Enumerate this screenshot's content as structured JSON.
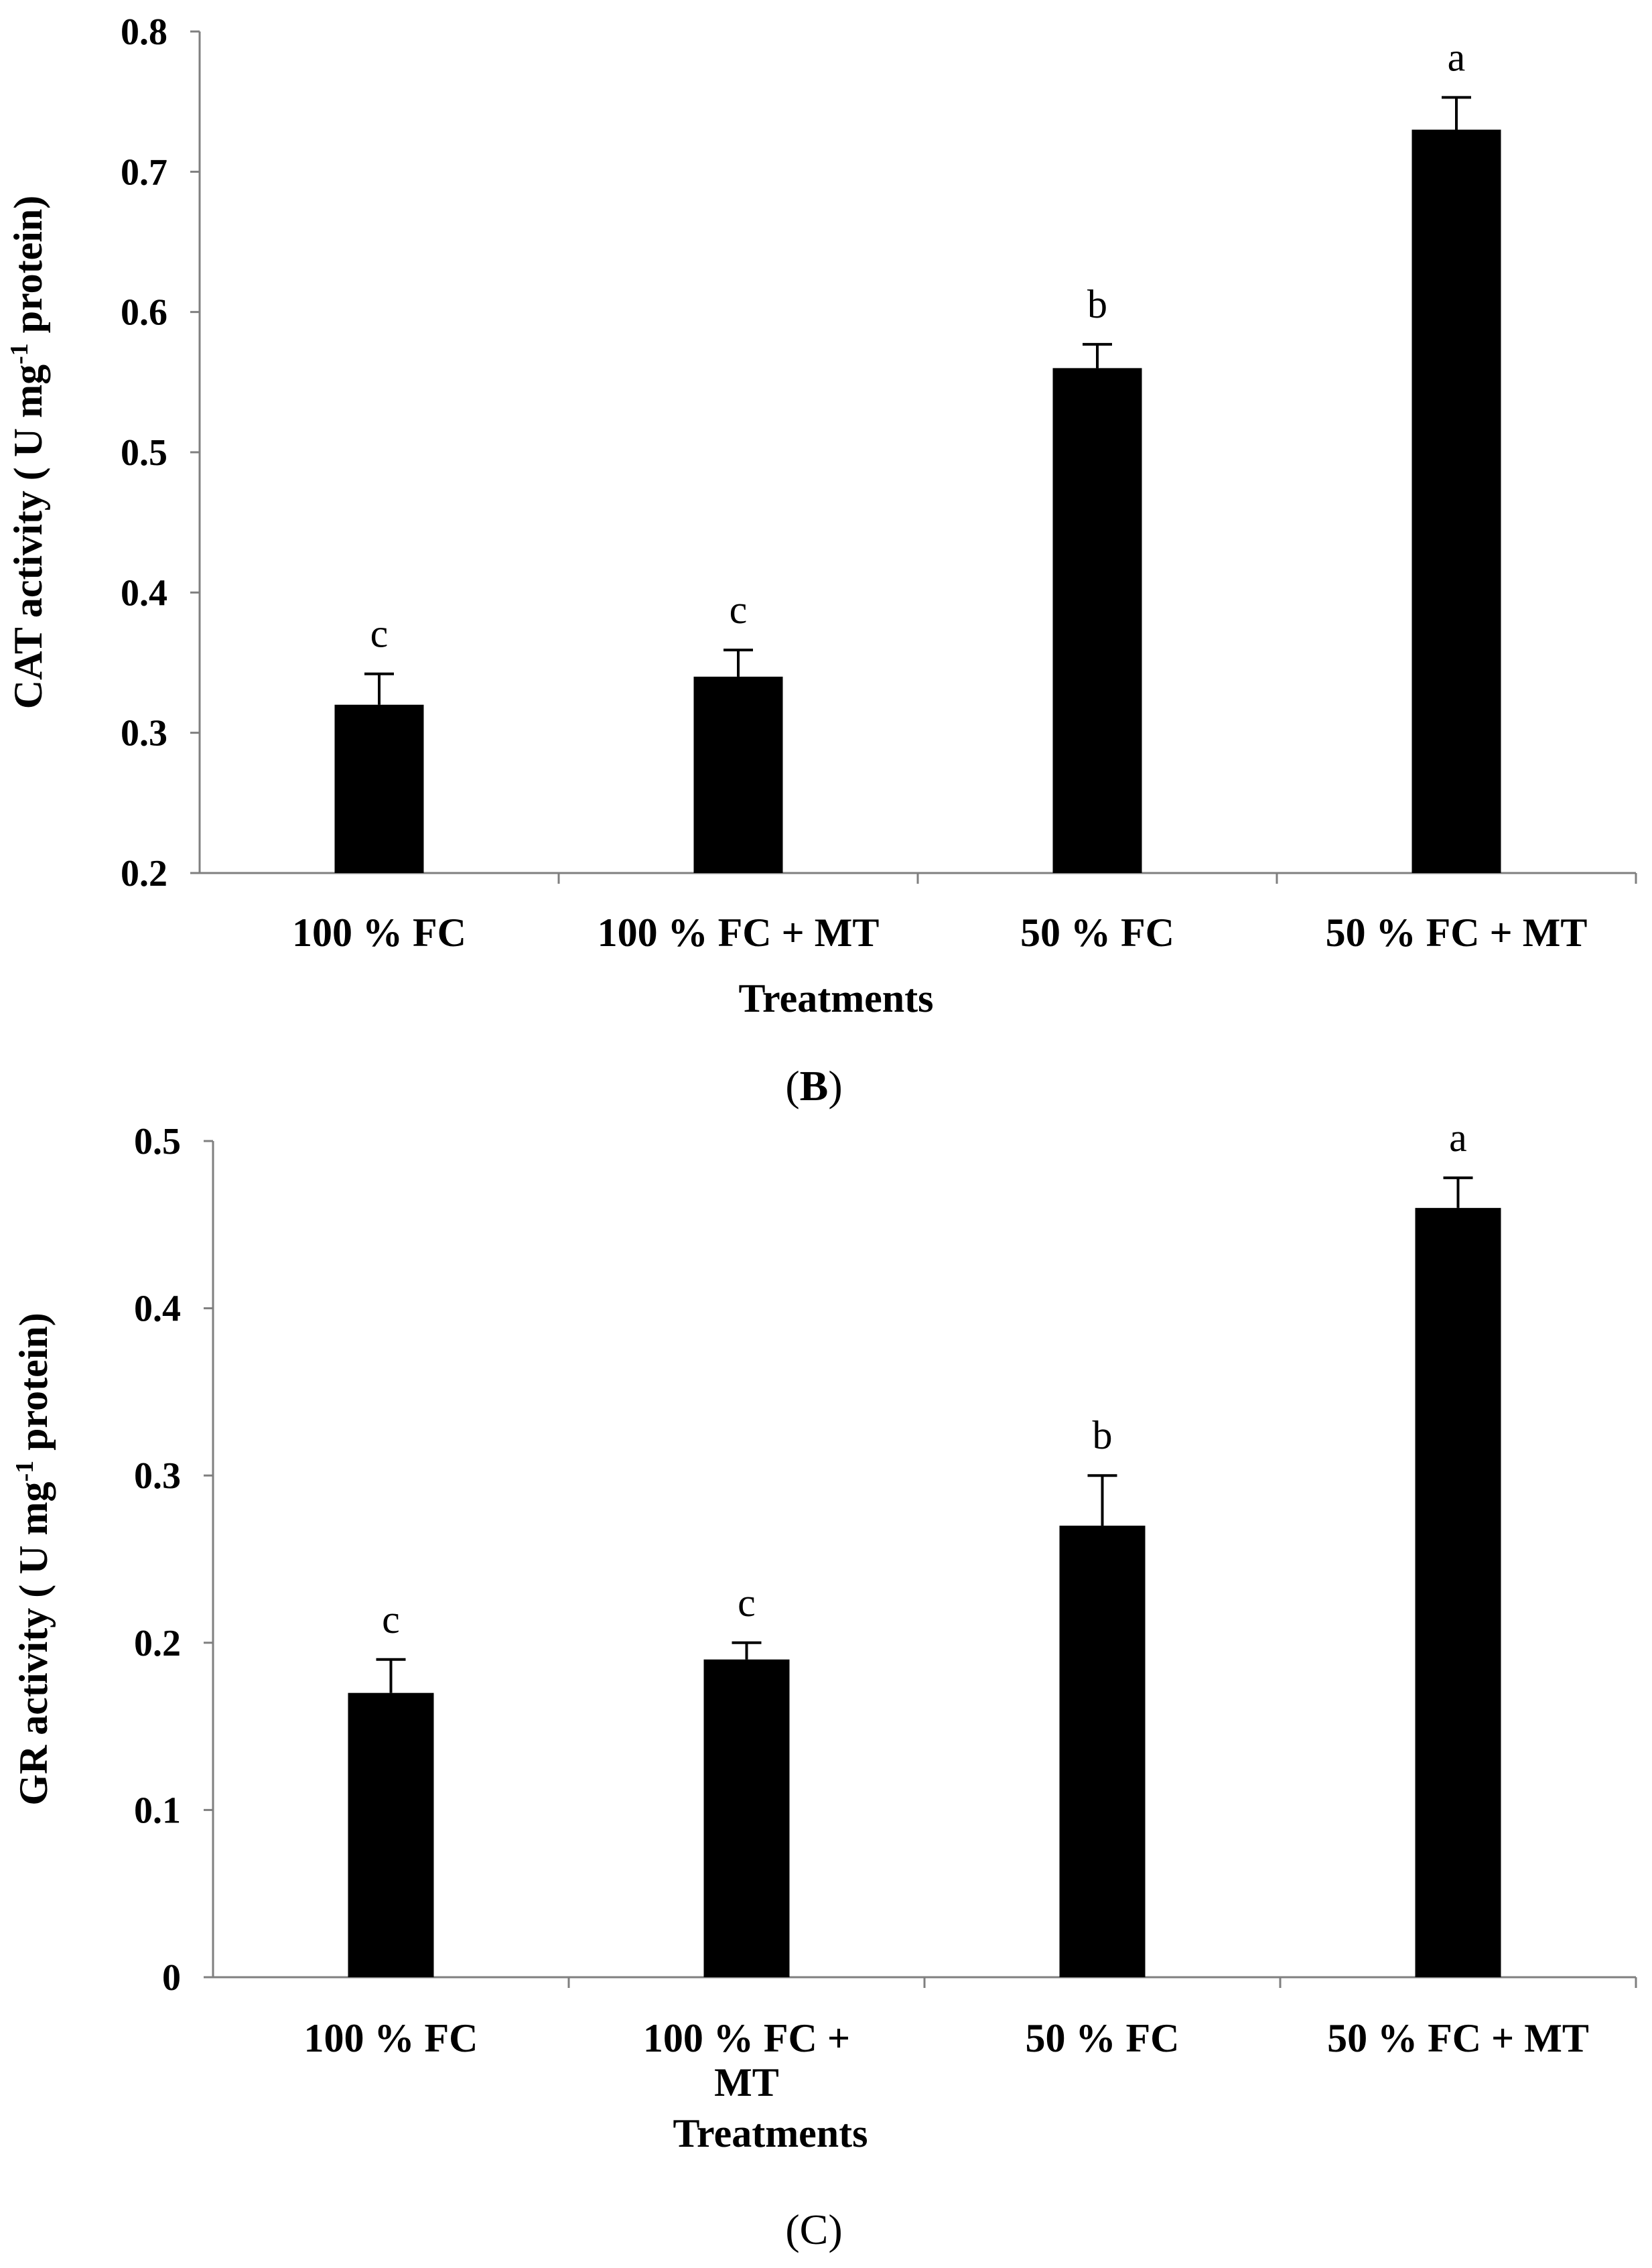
{
  "chart_data": [
    {
      "type": "bar",
      "panel_label": "B",
      "title": "",
      "xlabel": "Treatments",
      "ylabel": "CAT activity ( U mg-1 protein)",
      "ylabel_parts": {
        "main": "CAT activity ( U mg",
        "sup": "-1",
        "tail": " protein)"
      },
      "ylim": [
        0.2,
        0.8
      ],
      "yticks": [
        "0.2",
        "0.3",
        "0.4",
        "0.5",
        "0.6",
        "0.7",
        "0.8"
      ],
      "categories": [
        "100 % FC",
        "100 % FC + MT",
        "50 % FC",
        "50 % FC + MT"
      ],
      "category_lines": [
        [
          "100 % FC"
        ],
        [
          "100 % FC + MT"
        ],
        [
          "50 % FC"
        ],
        [
          "50 % FC + MT"
        ]
      ],
      "values": [
        0.32,
        0.34,
        0.56,
        0.73
      ],
      "errors": [
        0.022,
        0.019,
        0.017,
        0.023
      ],
      "letters": [
        "c",
        "c",
        "b",
        "a"
      ],
      "bar_color": "#000000",
      "grid": false
    },
    {
      "type": "bar",
      "panel_label": "C",
      "title": "",
      "xlabel": "Treatments",
      "ylabel": "GR activity ( U mg-1 protein)",
      "ylabel_parts": {
        "main": "GR activity ( U mg",
        "sup": "-1",
        "tail": " protein)"
      },
      "ylim": [
        0,
        0.5
      ],
      "yticks": [
        "0",
        "0.1",
        "0.2",
        "0.3",
        "0.4",
        "0.5"
      ],
      "categories": [
        "100 % FC",
        "100 % FC + MT",
        "50 % FC",
        "50 % FC + MT"
      ],
      "category_lines": [
        [
          "100 % FC"
        ],
        [
          "100 % FC +",
          "MT"
        ],
        [
          "50 % FC"
        ],
        [
          "50 % FC + MT"
        ]
      ],
      "values": [
        0.17,
        0.19,
        0.27,
        0.46
      ],
      "errors": [
        0.02,
        0.01,
        0.03,
        0.018
      ],
      "letters": [
        "c",
        "c",
        "b",
        "a"
      ],
      "bar_color": "#000000",
      "grid": false
    }
  ]
}
